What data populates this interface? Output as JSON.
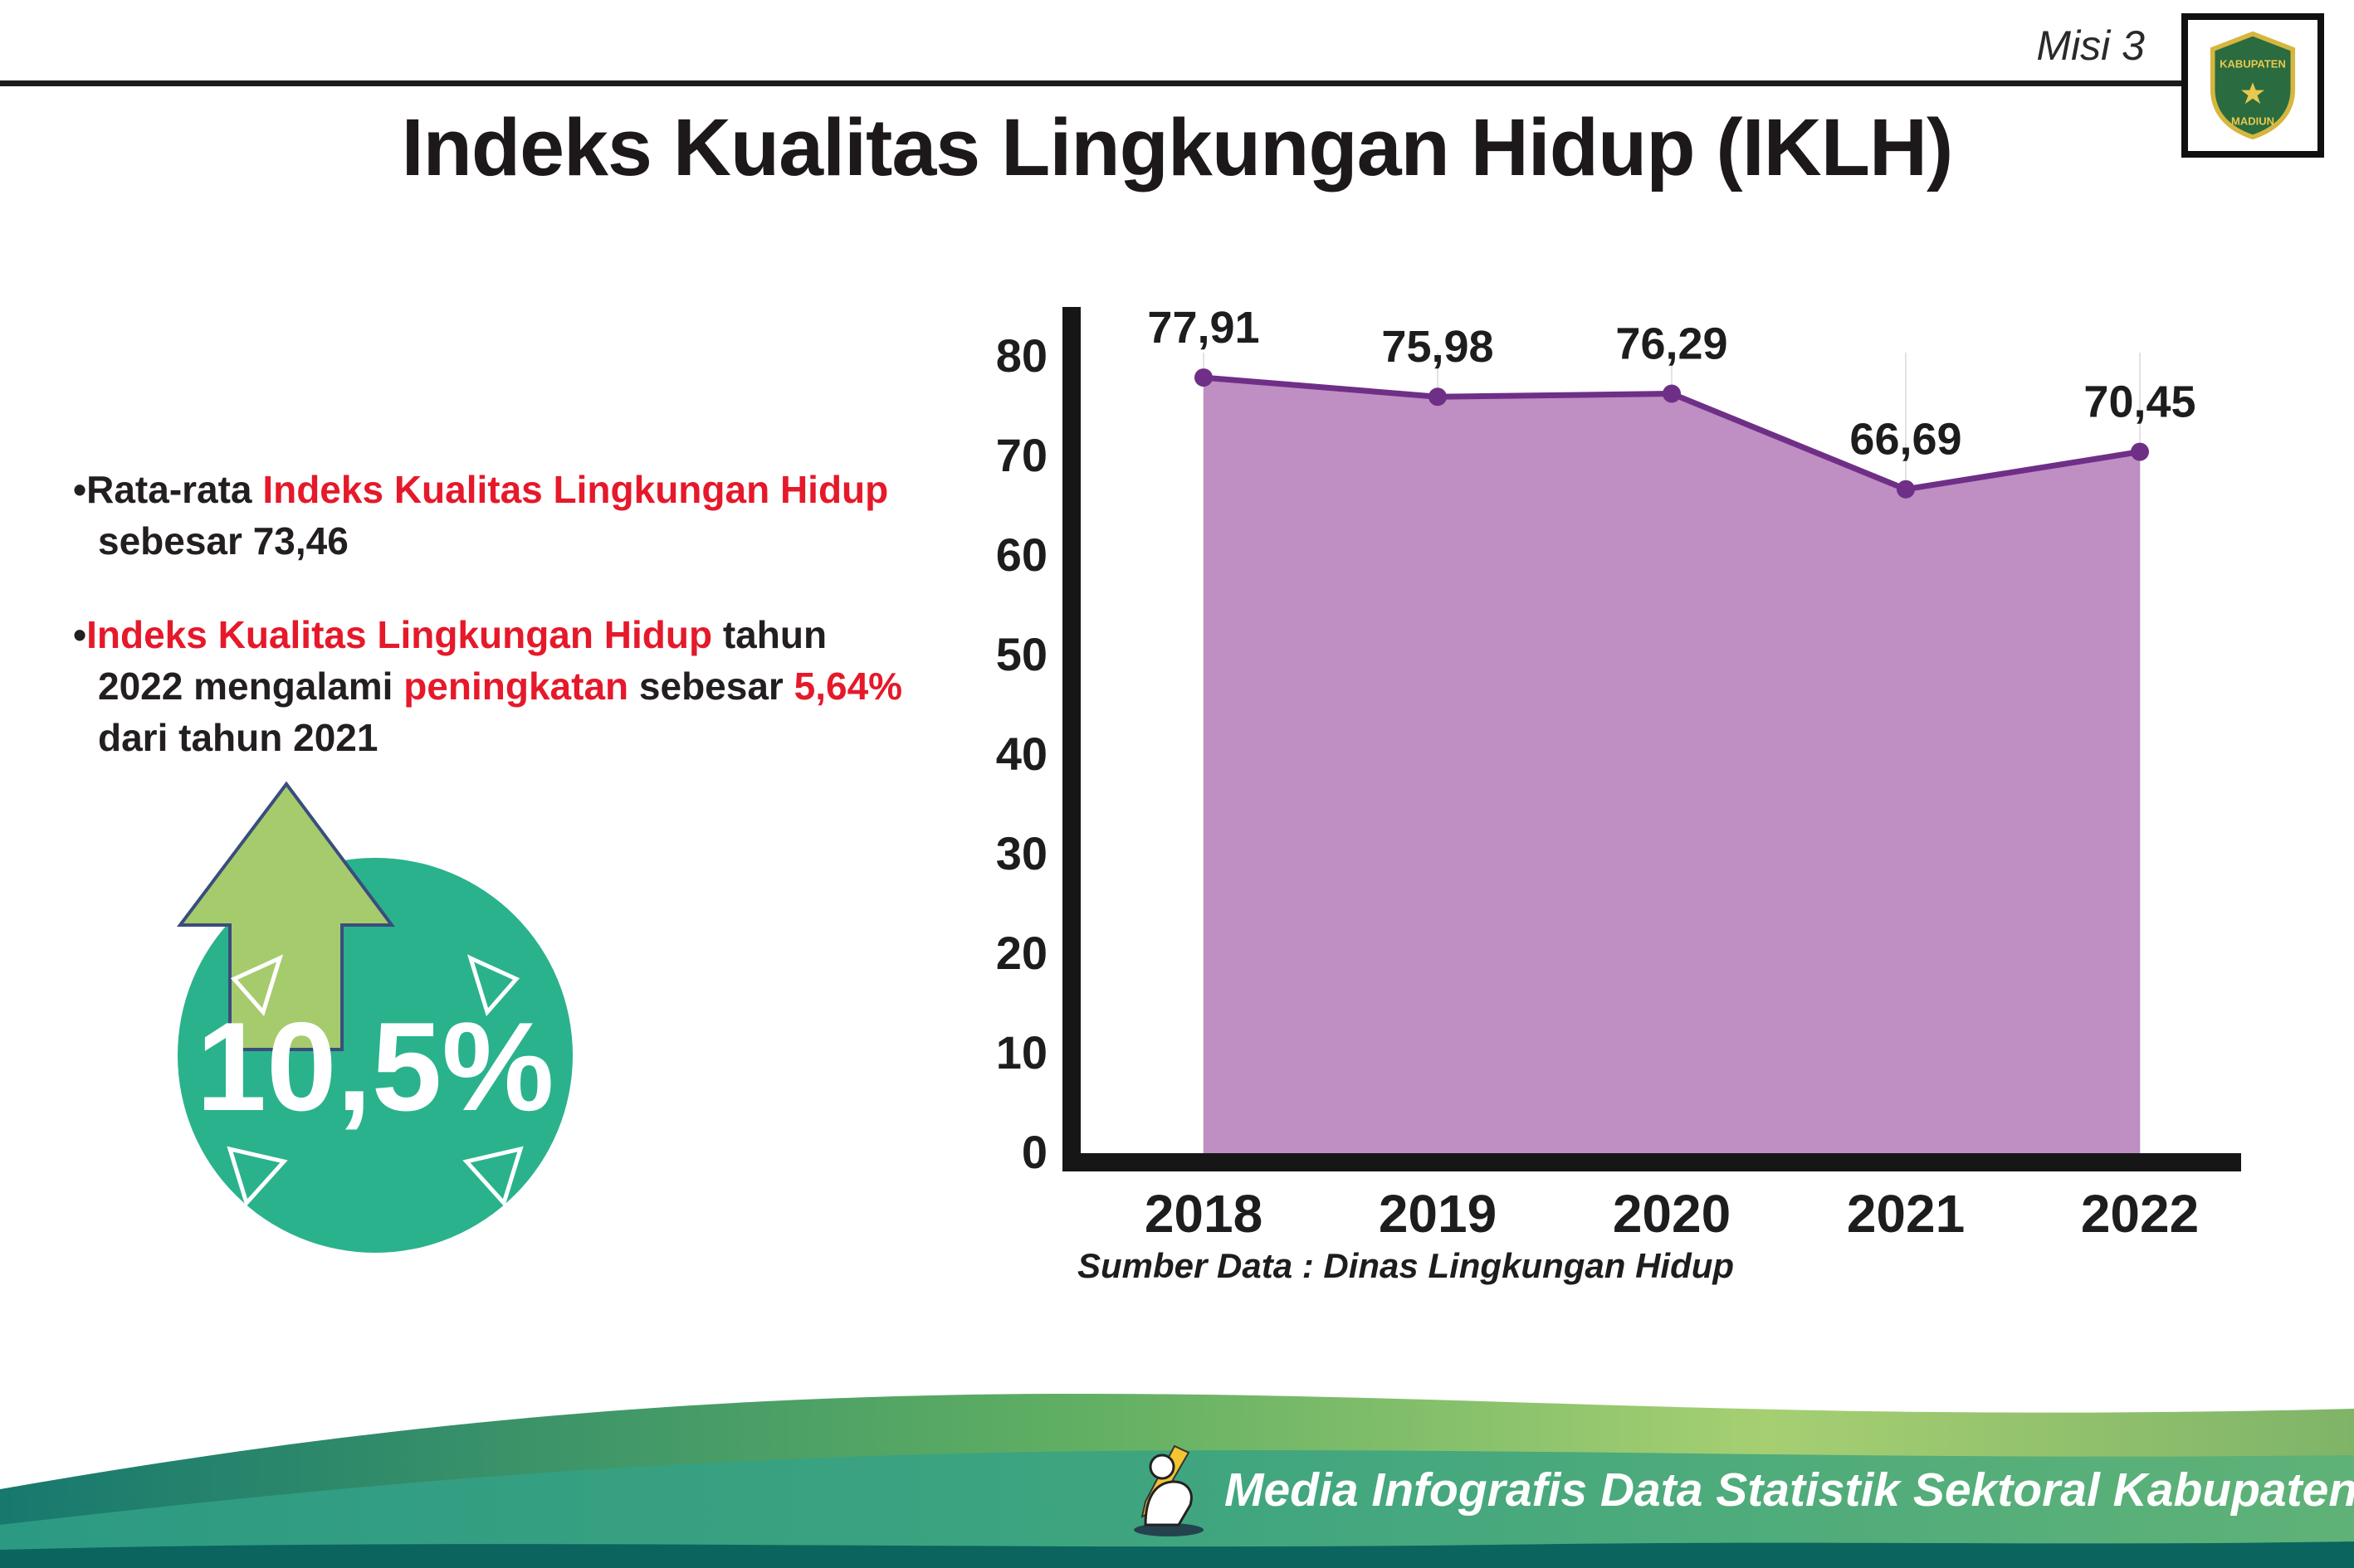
{
  "page": {
    "misi": "Misi 3",
    "title": "Indeks Kualitas Lingkungan Hidup (IKLH)"
  },
  "logo": {
    "top": "KABUPATEN",
    "bottom": "MADIUN"
  },
  "bullets": [
    {
      "marker": "•",
      "segments": [
        {
          "text": "Rata-rata ",
          "c": "dark"
        },
        {
          "text": "Indeks Kualitas Lingkungan Hidup",
          "c": "red"
        },
        {
          "text": " sebesar 73,46",
          "c": "dark"
        }
      ]
    },
    {
      "marker": "•",
      "segments": [
        {
          "text": "Indeks Kualitas Lingkungan Hidup",
          "c": "red"
        },
        {
          "text": " tahun 2022 mengalami ",
          "c": "dark"
        },
        {
          "text": "peningkatan",
          "c": "red"
        },
        {
          "text": " sebesar ",
          "c": "dark"
        },
        {
          "text": "5,64%",
          "c": "red"
        },
        {
          "text": " dari tahun 2021",
          "c": "dark"
        }
      ]
    }
  ],
  "badge": {
    "value": "10,5%",
    "circle_color": "#2ab28d",
    "arrow_color": "#a5cb6d"
  },
  "chart_data": {
    "type": "area",
    "title": "Indeks Kualitas Lingkungan Hidup (IKLH)",
    "categories": [
      "2018",
      "2019",
      "2020",
      "2021",
      "2022"
    ],
    "values": [
      77.91,
      75.98,
      76.29,
      66.69,
      70.45
    ],
    "value_labels": [
      "77,91",
      "75,98",
      "76,29",
      "66,69",
      "70,45"
    ],
    "ylim": [
      0,
      80
    ],
    "yticks": [
      0,
      10,
      20,
      30,
      40,
      50,
      60,
      70,
      80
    ],
    "xlabel": "",
    "ylabel": "",
    "grid": "vertical-light",
    "legend": "none",
    "source": "Sumber Data : Dinas Lingkungan Hidup",
    "colors": {
      "fill": "#bf8ec3",
      "line": "#6f2f87",
      "point": "#6f2f87",
      "axis": "#161616",
      "label": "#1d1d1f"
    }
  },
  "footer": {
    "text": "Media Infografis Data Statistik Sektoral Kabupaten Madiun |"
  }
}
